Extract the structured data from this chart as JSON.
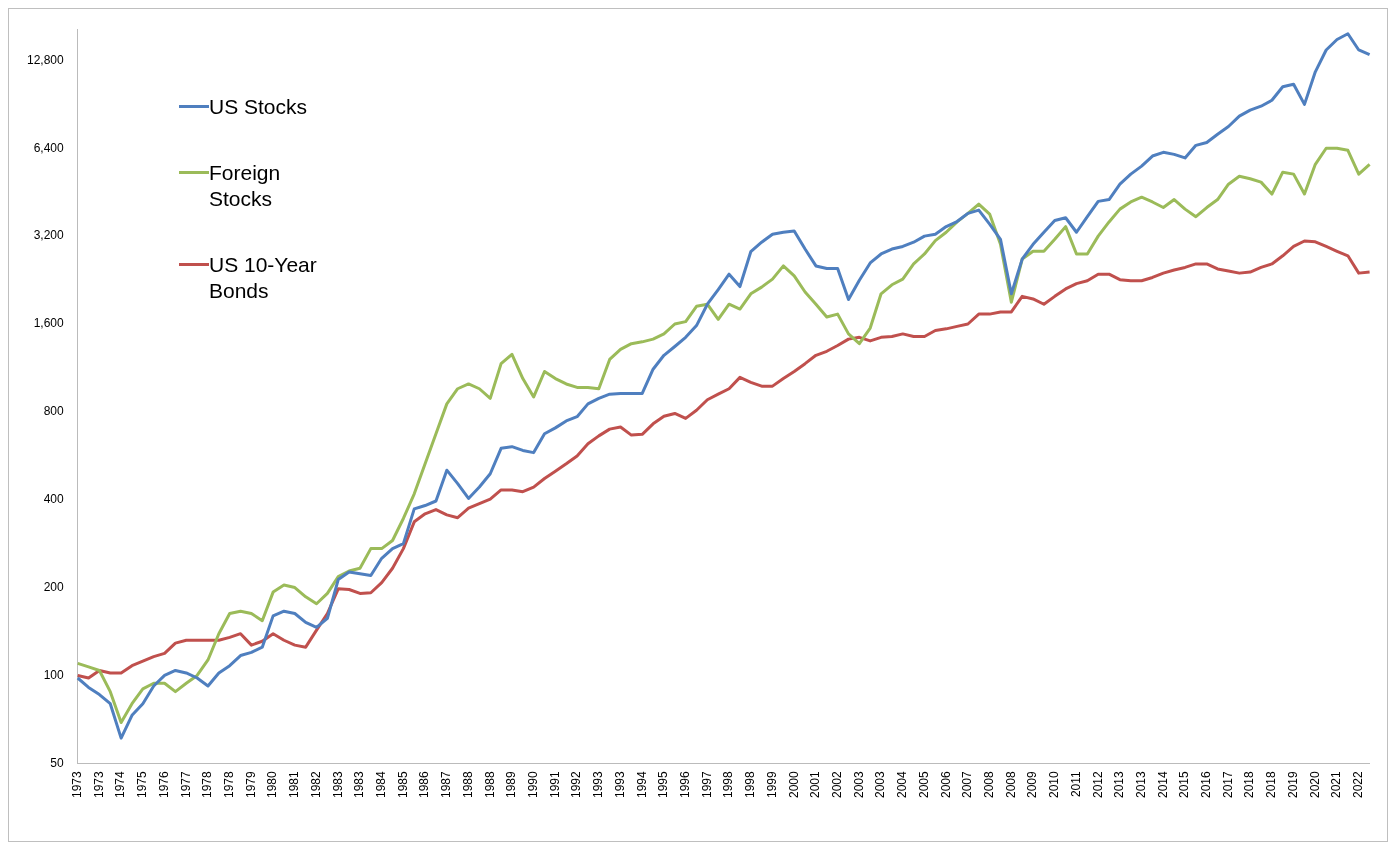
{
  "chart_data": {
    "type": "line",
    "log": "y",
    "grid": false,
    "legend": "top left",
    "marker": "none",
    "line_style": "solid",
    "categories": [
      "1973",
      null,
      "1973",
      null,
      "1974",
      null,
      "1975",
      null,
      "1976",
      null,
      "1977",
      null,
      "1978",
      null,
      "1978",
      null,
      "1979",
      null,
      "1980",
      null,
      "1981",
      null,
      "1982",
      null,
      "1983",
      null,
      "1983",
      null,
      "1984",
      null,
      "1985",
      null,
      "1986",
      null,
      "1987",
      null,
      "1988",
      null,
      "1988",
      null,
      "1989",
      null,
      "1990",
      null,
      "1991",
      null,
      "1992",
      null,
      "1993",
      null,
      "1993",
      null,
      "1994",
      null,
      "1995",
      null,
      "1996",
      null,
      "1997",
      null,
      "1998",
      null,
      "1998",
      null,
      "1999",
      null,
      "2000",
      null,
      "2001",
      null,
      "2002",
      null,
      "2003",
      null,
      "2003",
      null,
      "2004",
      null,
      "2005",
      null,
      "2006",
      null,
      "2007",
      null,
      "2008",
      null,
      "2008",
      null,
      "2009",
      null,
      "2010",
      null,
      "2011",
      null,
      "2012",
      null,
      "2013",
      null,
      "2013",
      null,
      "2014",
      null,
      "2015",
      null,
      "2016",
      null,
      "2017",
      null,
      "2018",
      null,
      "2018",
      null,
      "2019",
      null,
      "2020",
      null,
      "2021",
      null,
      "2022",
      null
    ],
    "ylim": [
      50,
      16400
    ],
    "yticks": [
      50,
      100,
      200,
      400,
      800,
      {
        "value": 1600,
        "label": "1,600"
      },
      {
        "value": 3200,
        "label": "3,200"
      },
      {
        "value": 6400,
        "label": "6,400"
      },
      {
        "value": 12800,
        "label": "12,800"
      }
    ],
    "series": [
      {
        "name": "US Stocks",
        "color": "#4f7fbf",
        "values": [
          98,
          91,
          86,
          80,
          61,
          73,
          80,
          92,
          100,
          104,
          102,
          98,
          92,
          102,
          108,
          117,
          120,
          125,
          160,
          166,
          163,
          152,
          146,
          157,
          213,
          226,
          223,
          220,
          252,
          272,
          283,
          372,
          382,
          396,
          505,
          454,
          404,
          442,
          491,
          600,
          608,
          590,
          580,
          673,
          705,
          745,
          770,
          852,
          890,
          920,
          925,
          925,
          925,
          1120,
          1250,
          1340,
          1440,
          1580,
          1870,
          2100,
          2370,
          2150,
          2830,
          3050,
          3250,
          3300,
          3330,
          2890,
          2530,
          2480,
          2480,
          1940,
          2260,
          2590,
          2780,
          2890,
          2950,
          3050,
          3200,
          3250,
          3450,
          3590,
          3830,
          3930,
          3520,
          3120,
          2030,
          2670,
          3000,
          3300,
          3620,
          3700,
          3300,
          3730,
          4210,
          4270,
          4820,
          5220,
          5560,
          6020,
          6200,
          6100,
          5930,
          6550,
          6700,
          7150,
          7600,
          8250,
          8650,
          8920,
          9350,
          10400,
          10600,
          9050,
          11700,
          13900,
          15100,
          15800,
          13900,
          13400
        ]
      },
      {
        "name": "Foreign Stocks",
        "color": "#9bbb59",
        "values": [
          110,
          107,
          104,
          88,
          69,
          80,
          90,
          94,
          94,
          88,
          94,
          100,
          113,
          139,
          163,
          166,
          163,
          154,
          193,
          204,
          200,
          186,
          176,
          191,
          218,
          228,
          233,
          272,
          272,
          290,
          345,
          419,
          531,
          673,
          852,
          960,
          997,
          960,
          890,
          1170,
          1260,
          1040,
          900,
          1100,
          1040,
          997,
          970,
          970,
          960,
          1210,
          1310,
          1370,
          1390,
          1420,
          1480,
          1600,
          1630,
          1840,
          1870,
          1660,
          1870,
          1800,
          2030,
          2140,
          2280,
          2530,
          2340,
          2060,
          1870,
          1690,
          1730,
          1480,
          1370,
          1550,
          2030,
          2180,
          2280,
          2570,
          2780,
          3090,
          3300,
          3580,
          3830,
          4120,
          3810,
          3000,
          1900,
          2670,
          2840,
          2840,
          3120,
          3450,
          2780,
          2780,
          3200,
          3580,
          3960,
          4190,
          4350,
          4190,
          4010,
          4270,
          3960,
          3730,
          4010,
          4270,
          4820,
          5130,
          5030,
          4900,
          4460,
          5300,
          5220,
          4460,
          5640,
          6400,
          6400,
          6300,
          5220,
          5640
        ]
      },
      {
        "name": "US 10-Year Bonds",
        "color": "#c0504d",
        "values": [
          100,
          98,
          104,
          102,
          102,
          108,
          112,
          116,
          119,
          129,
          132,
          132,
          132,
          132,
          135,
          139,
          127,
          131,
          139,
          132,
          127,
          125,
          143,
          163,
          198,
          197,
          191,
          192,
          208,
          233,
          272,
          336,
          358,
          370,
          355,
          347,
          374,
          388,
          402,
          432,
          432,
          426,
          442,
          473,
          501,
          531,
          565,
          622,
          662,
          698,
          710,
          666,
          670,
          728,
          773,
          790,
          760,
          810,
          880,
          920,
          960,
          1050,
          1010,
          980,
          980,
          1040,
          1100,
          1170,
          1250,
          1290,
          1350,
          1420,
          1440,
          1400,
          1440,
          1450,
          1480,
          1450,
          1450,
          1520,
          1540,
          1570,
          1600,
          1730,
          1730,
          1760,
          1760,
          1990,
          1950,
          1870,
          1990,
          2110,
          2200,
          2250,
          2370,
          2370,
          2270,
          2250,
          2250,
          2310,
          2390,
          2450,
          2500,
          2570,
          2570,
          2470,
          2430,
          2390,
          2410,
          2500,
          2570,
          2740,
          2950,
          3080,
          3060,
          2950,
          2840,
          2740,
          2390,
          2410
        ]
      }
    ]
  }
}
